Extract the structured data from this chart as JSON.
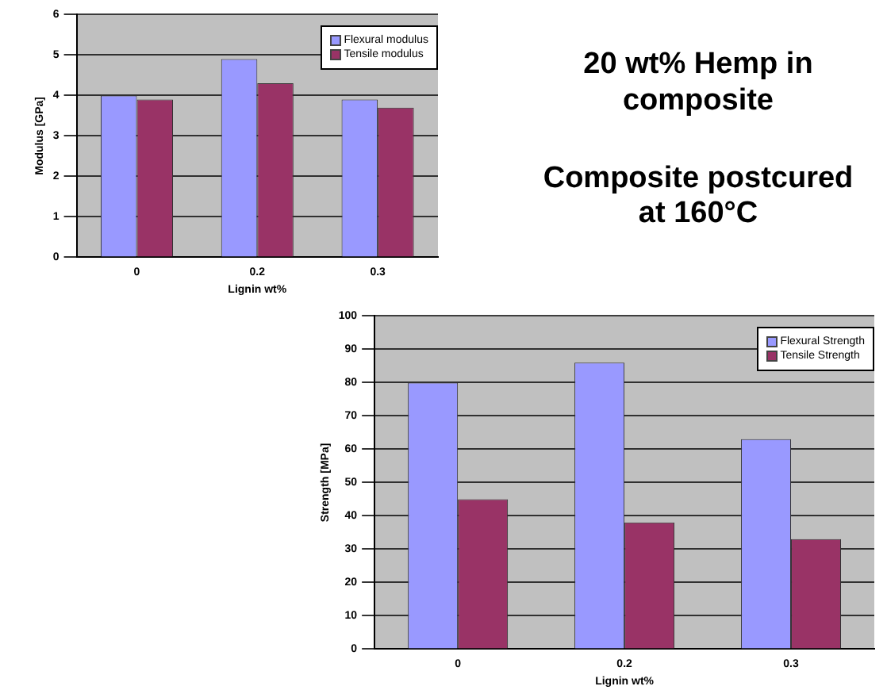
{
  "chart_data": [
    {
      "type": "bar",
      "xlabel": "Lignin wt%",
      "ylabel": "Modulus [GPa]",
      "categories": [
        "0",
        "0.2",
        "0.3"
      ],
      "series": [
        {
          "name": "Flexural modulus",
          "color": "#9999ff",
          "values": [
            4.0,
            4.9,
            3.9
          ]
        },
        {
          "name": "Tensile modulus",
          "color": "#993366",
          "values": [
            3.9,
            4.3,
            3.7
          ]
        }
      ],
      "ylim": [
        0,
        6
      ],
      "yticks": [
        0,
        1,
        2,
        3,
        4,
        5,
        6
      ],
      "grid": "y",
      "legend": "top right"
    },
    {
      "type": "other",
      "title": "20 wt% Hemp in composite",
      "annotations": [
        "Composite postcured at 160°C"
      ]
    },
    {
      "type": "bar",
      "xlabel": "Lignin wt%",
      "ylabel": "Strength [MPa]",
      "categories": [
        "0",
        "0.2",
        "0.3"
      ],
      "series": [
        {
          "name": "Flexural Strength",
          "color": "#9999ff",
          "values": [
            80,
            86,
            63
          ]
        },
        {
          "name": "Tensile Strength",
          "color": "#993366",
          "values": [
            45,
            38,
            33
          ]
        }
      ],
      "ylim": [
        0,
        100
      ],
      "yticks": [
        0,
        10,
        20,
        30,
        40,
        50,
        60,
        70,
        80,
        90,
        100
      ],
      "grid": "y",
      "legend": "top right"
    }
  ]
}
